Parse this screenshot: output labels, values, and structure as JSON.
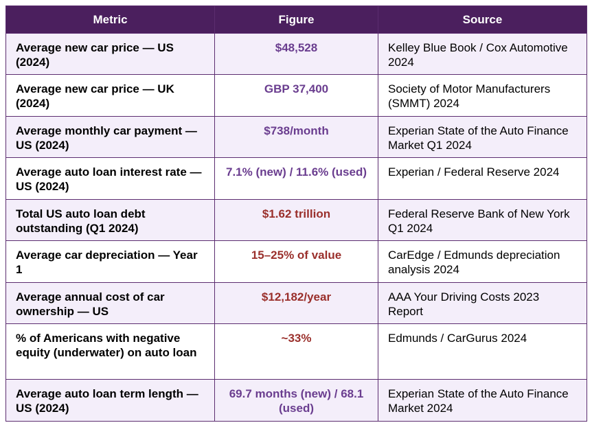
{
  "table": {
    "headers": [
      "Metric",
      "Figure",
      "Source"
    ],
    "rows": [
      {
        "metric": "Average new car price — US (2024)",
        "figure": "$48,528",
        "source": "Kelley Blue Book / Cox Automotive 2024",
        "figure_color": "#6a3d8f"
      },
      {
        "metric": "Average new car price — UK (2024)",
        "figure": "GBP 37,400",
        "source": "Society of Motor Manufacturers (SMMT) 2024",
        "figure_color": "#6a3d8f"
      },
      {
        "metric": "Average monthly car payment — US (2024)",
        "figure": "$738/month",
        "source": "Experian State of the Auto Finance Market Q1 2024",
        "figure_color": "#6a3d8f"
      },
      {
        "metric": "Average auto loan interest rate — US (2024)",
        "figure": "7.1% (new) / 11.6% (used)",
        "source": "Experian / Federal Reserve 2024",
        "figure_color": "#6a3d8f"
      },
      {
        "metric": "Total US auto loan debt outstanding (Q1 2024)",
        "figure": "$1.62 trillion",
        "source": "Federal Reserve Bank of New York Q1 2024",
        "figure_color": "#9a2f2b"
      },
      {
        "metric": "Average car depreciation — Year 1",
        "figure": "15–25% of value",
        "source": "CarEdge / Edmunds depreciation analysis 2024",
        "figure_color": "#9a2f2b"
      },
      {
        "metric": "Average annual cost of car ownership — US",
        "figure": "$12,182/year",
        "source": "AAA Your Driving Costs 2023 Report",
        "figure_color": "#9a2f2b"
      },
      {
        "metric": "% of Americans with negative equity (underwater) on auto loan",
        "figure": "~33%",
        "source": "Edmunds / CarGurus 2024",
        "figure_color": "#9a2f2b"
      },
      {
        "metric": "Average auto loan term length — US (2024)",
        "figure": "69.7 months (new) / 68.1 (used)",
        "source": "Experian State of the Auto Finance Market 2024",
        "figure_color": "#6a3d8f"
      }
    ]
  }
}
